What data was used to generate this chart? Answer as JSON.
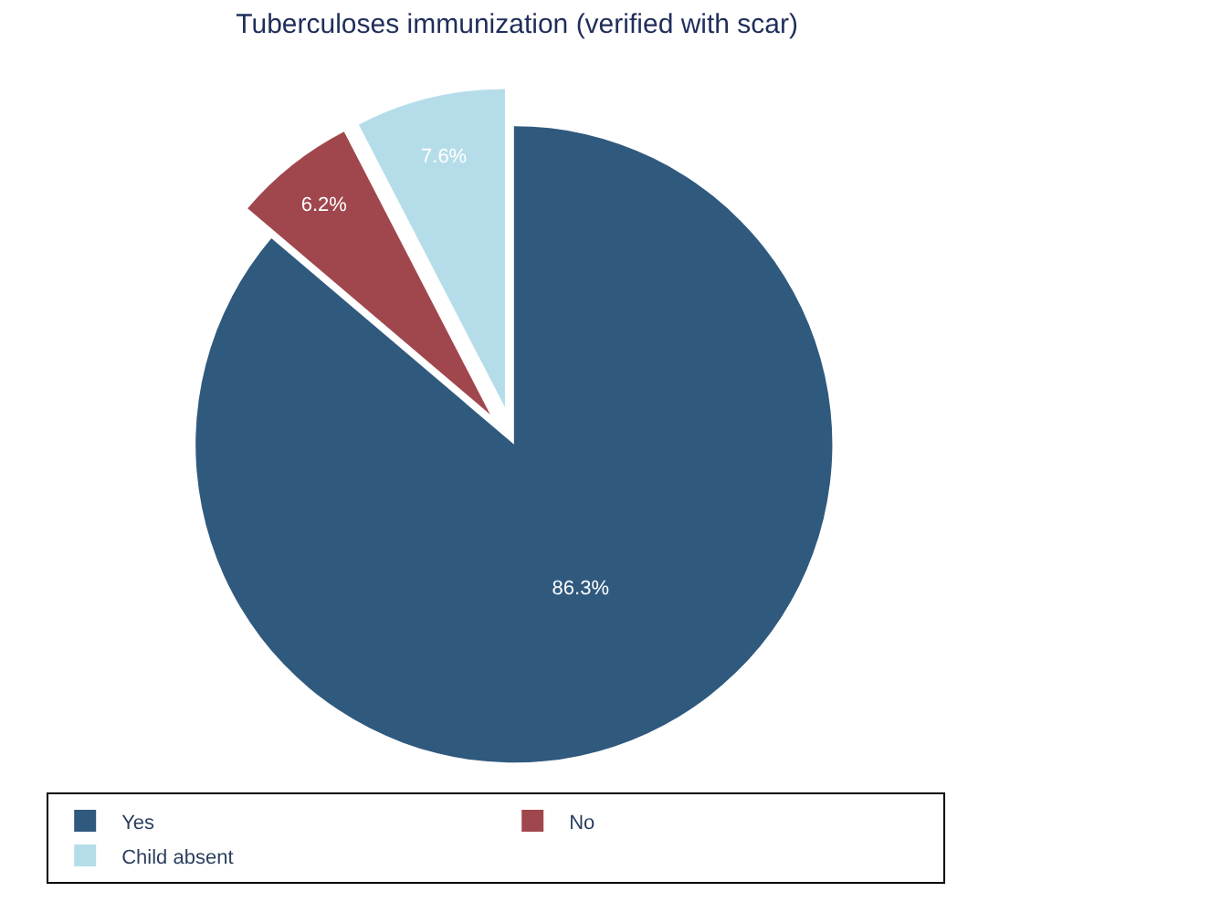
{
  "chart_data": {
    "type": "pie",
    "title": "Tuberculoses immunization (verified with scar)",
    "categories": [
      "Yes",
      "No",
      "Child absent"
    ],
    "values": [
      86.3,
      6.2,
      7.6
    ],
    "value_labels": [
      "86.3%",
      "6.2%",
      "7.6%"
    ],
    "colors": [
      "#30597e",
      "#a0474d",
      "#b5dde9"
    ],
    "legend": "bottom"
  }
}
